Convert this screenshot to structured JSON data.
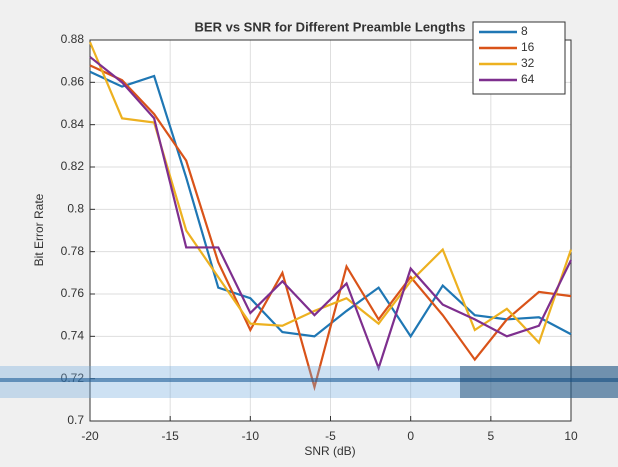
{
  "chart_data": {
    "type": "line",
    "title": "BER vs SNR for Different Preamble Lengths",
    "xlabel": "SNR (dB)",
    "ylabel": "Bit Error Rate",
    "x": [
      -20,
      -18,
      -16,
      -14,
      -12,
      -10,
      -8,
      -6,
      -4,
      -2,
      0,
      2,
      4,
      6,
      8,
      10
    ],
    "series": [
      {
        "name": "8",
        "color": "#1f77b4",
        "values": [
          0.865,
          0.858,
          0.863,
          0.815,
          0.763,
          0.758,
          0.742,
          0.74,
          0.752,
          0.763,
          0.74,
          0.764,
          0.75,
          0.748,
          0.749,
          0.741
        ]
      },
      {
        "name": "16",
        "color": "#d95319",
        "values": [
          0.868,
          0.861,
          0.845,
          0.823,
          0.775,
          0.743,
          0.77,
          0.716,
          0.773,
          0.748,
          0.768,
          0.75,
          0.729,
          0.748,
          0.761,
          0.759
        ]
      },
      {
        "name": "32",
        "color": "#edb120",
        "values": [
          0.879,
          0.843,
          0.841,
          0.79,
          0.768,
          0.746,
          0.745,
          0.752,
          0.758,
          0.746,
          0.766,
          0.781,
          0.743,
          0.753,
          0.737,
          0.781
        ]
      },
      {
        "name": "64",
        "color": "#7e2f8e",
        "values": [
          0.872,
          0.86,
          0.843,
          0.782,
          0.782,
          0.751,
          0.766,
          0.75,
          0.765,
          0.725,
          0.772,
          0.755,
          0.748,
          0.74,
          0.745,
          0.776
        ]
      }
    ],
    "xlim": [
      -20,
      10
    ],
    "xticks": [
      -20,
      -15,
      -10,
      -5,
      0,
      5,
      10
    ],
    "ylim": [
      0.7,
      0.88
    ],
    "yticks": [
      0.7,
      0.72,
      0.74,
      0.76,
      0.78,
      0.8,
      0.82,
      0.84,
      0.86,
      0.88
    ],
    "grid": true,
    "legend": "top-right"
  }
}
